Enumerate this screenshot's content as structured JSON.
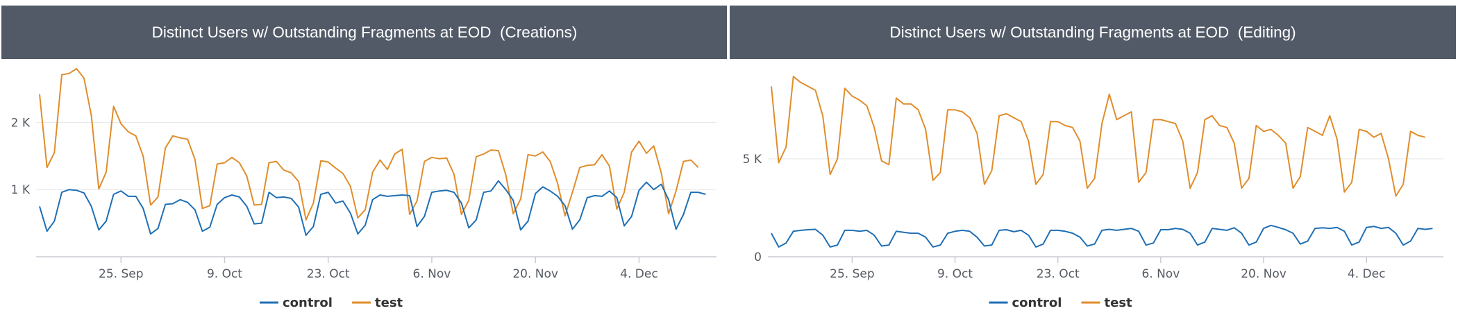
{
  "chart_data": [
    {
      "type": "line",
      "title": "Distinct Users w/ Outstanding Fragments at EOD  (Creations)",
      "x_tick_labels": [
        "25. Sep",
        "9. Oct",
        "23. Oct",
        "6. Nov",
        "20. Nov",
        "4. Dec"
      ],
      "x_tick_days": [
        11,
        25,
        39,
        53,
        67,
        81
      ],
      "y_tick_labels": [
        "1 K",
        "2 K"
      ],
      "y_tick_values": [
        1000,
        2000
      ],
      "ylim": [
        0,
        2800
      ],
      "xlim": [
        0,
        91
      ],
      "grid": true,
      "legend_position": "bottom-center",
      "series": [
        {
          "name": "control",
          "color": "#1f6fb4",
          "values": [
            750,
            380,
            530,
            960,
            1000,
            990,
            950,
            750,
            400,
            530,
            930,
            980,
            900,
            900,
            720,
            340,
            420,
            780,
            790,
            850,
            810,
            700,
            380,
            440,
            780,
            880,
            920,
            890,
            750,
            490,
            500,
            960,
            880,
            890,
            870,
            740,
            320,
            450,
            930,
            960,
            800,
            830,
            650,
            340,
            470,
            850,
            920,
            900,
            910,
            920,
            910,
            450,
            600,
            960,
            980,
            990,
            960,
            800,
            430,
            550,
            960,
            980,
            1130,
            1000,
            840,
            400,
            530,
            940,
            1040,
            980,
            900,
            760,
            410,
            550,
            880,
            910,
            900,
            980,
            880,
            460,
            600,
            990,
            1110,
            1000,
            1080,
            850,
            410,
            630,
            960,
            960,
            930
          ]
        },
        {
          "name": "test",
          "color": "#e08d2c",
          "values": [
            2420,
            1330,
            1550,
            2710,
            2730,
            2800,
            2660,
            2100,
            1010,
            1260,
            2240,
            1980,
            1860,
            1800,
            1500,
            770,
            890,
            1620,
            1800,
            1770,
            1750,
            1450,
            720,
            760,
            1380,
            1400,
            1480,
            1400,
            1200,
            770,
            780,
            1400,
            1420,
            1290,
            1250,
            1120,
            550,
            800,
            1430,
            1410,
            1320,
            1240,
            1050,
            580,
            700,
            1260,
            1440,
            1300,
            1530,
            1600,
            630,
            830,
            1420,
            1480,
            1460,
            1470,
            1230,
            630,
            840,
            1490,
            1530,
            1590,
            1580,
            1220,
            640,
            860,
            1520,
            1500,
            1560,
            1420,
            1090,
            610,
            960,
            1330,
            1360,
            1370,
            1520,
            1350,
            710,
            960,
            1560,
            1720,
            1540,
            1650,
            1250,
            640,
            980,
            1420,
            1440,
            1330
          ]
        }
      ]
    },
    {
      "type": "line",
      "title": "Distinct Users w/ Outstanding Fragments at EOD  (Editing)",
      "x_tick_labels": [
        "25. Sep",
        "9. Oct",
        "23. Oct",
        "6. Nov",
        "20. Nov",
        "4. Dec"
      ],
      "x_tick_days": [
        11,
        25,
        39,
        53,
        67,
        81
      ],
      "y_tick_labels": [
        "0",
        "5 K"
      ],
      "y_tick_values": [
        0,
        5000
      ],
      "ylim": [
        0,
        9600
      ],
      "xlim": [
        0,
        91
      ],
      "grid": true,
      "legend_position": "bottom-center",
      "series": [
        {
          "name": "control",
          "color": "#1f6fb4",
          "values": [
            1200,
            500,
            700,
            1300,
            1350,
            1380,
            1400,
            1100,
            500,
            600,
            1350,
            1350,
            1300,
            1350,
            1100,
            550,
            600,
            1300,
            1250,
            1200,
            1200,
            1000,
            500,
            600,
            1200,
            1300,
            1350,
            1300,
            1000,
            550,
            600,
            1350,
            1380,
            1280,
            1350,
            1100,
            500,
            650,
            1350,
            1350,
            1300,
            1200,
            1000,
            550,
            650,
            1350,
            1400,
            1350,
            1400,
            1450,
            1300,
            600,
            700,
            1380,
            1380,
            1450,
            1400,
            1200,
            600,
            750,
            1450,
            1400,
            1350,
            1480,
            1200,
            600,
            750,
            1450,
            1600,
            1500,
            1380,
            1200,
            650,
            800,
            1450,
            1480,
            1450,
            1500,
            1300,
            600,
            750,
            1500,
            1550,
            1450,
            1500,
            1200,
            600,
            800,
            1450,
            1400,
            1450
          ]
        },
        {
          "name": "test",
          "color": "#e08d2c",
          "values": [
            8700,
            4800,
            5600,
            9200,
            8900,
            8700,
            8500,
            7200,
            4200,
            5000,
            8600,
            8200,
            8000,
            7700,
            6600,
            4900,
            4700,
            8100,
            7800,
            7800,
            7500,
            6500,
            3900,
            4300,
            7500,
            7500,
            7400,
            7100,
            6300,
            3700,
            4400,
            7200,
            7300,
            7100,
            6900,
            5900,
            3700,
            4200,
            6900,
            6900,
            6700,
            6600,
            5900,
            3500,
            4000,
            6800,
            8300,
            7000,
            7200,
            7400,
            3800,
            4300,
            7000,
            7000,
            6900,
            6800,
            5900,
            3500,
            4300,
            7000,
            7200,
            6700,
            6600,
            5800,
            3500,
            4000,
            6700,
            6400,
            6500,
            6200,
            5800,
            3500,
            4100,
            6600,
            6400,
            6200,
            7200,
            6000,
            3300,
            3800,
            6500,
            6400,
            6100,
            6300,
            5000,
            3100,
            3700,
            6400,
            6200,
            6100
          ]
        }
      ]
    }
  ]
}
